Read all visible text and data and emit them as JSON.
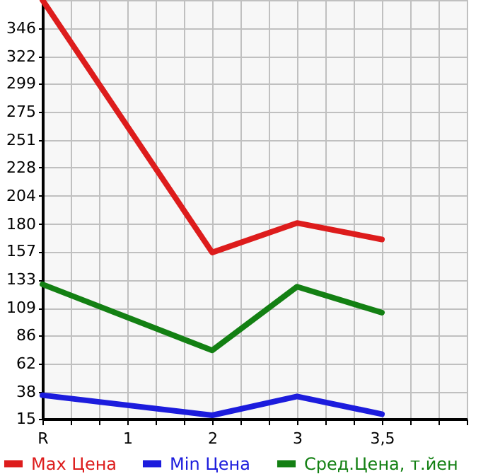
{
  "chart_data": {
    "type": "line",
    "categories": [
      "R",
      null,
      null,
      "1",
      null,
      null,
      "2",
      null,
      null,
      "3",
      null,
      null,
      "3,5",
      null,
      null,
      null
    ],
    "ylim": [
      15,
      370
    ],
    "yticks": [
      15,
      38,
      62,
      86,
      109,
      133,
      157,
      180,
      204,
      228,
      251,
      275,
      299,
      322,
      346
    ],
    "series": [
      {
        "name": "Max Цена",
        "color": "#dd1c1c",
        "values": [
          370,
          null,
          null,
          null,
          null,
          null,
          156,
          null,
          null,
          181,
          null,
          null,
          167,
          null,
          null,
          null
        ]
      },
      {
        "name": "Min Цена",
        "color": "#1c1cdd",
        "values": [
          35,
          null,
          null,
          null,
          null,
          null,
          18,
          null,
          null,
          34,
          null,
          null,
          19,
          null,
          null,
          null
        ]
      },
      {
        "name": "Сред.Цена, т.йен",
        "color": "#138013",
        "values": [
          129,
          null,
          null,
          null,
          null,
          null,
          73,
          null,
          null,
          127,
          null,
          null,
          105,
          null,
          null,
          null
        ]
      }
    ],
    "grid": true,
    "legend": "bottom",
    "marker": "none",
    "line_style": "solid"
  }
}
